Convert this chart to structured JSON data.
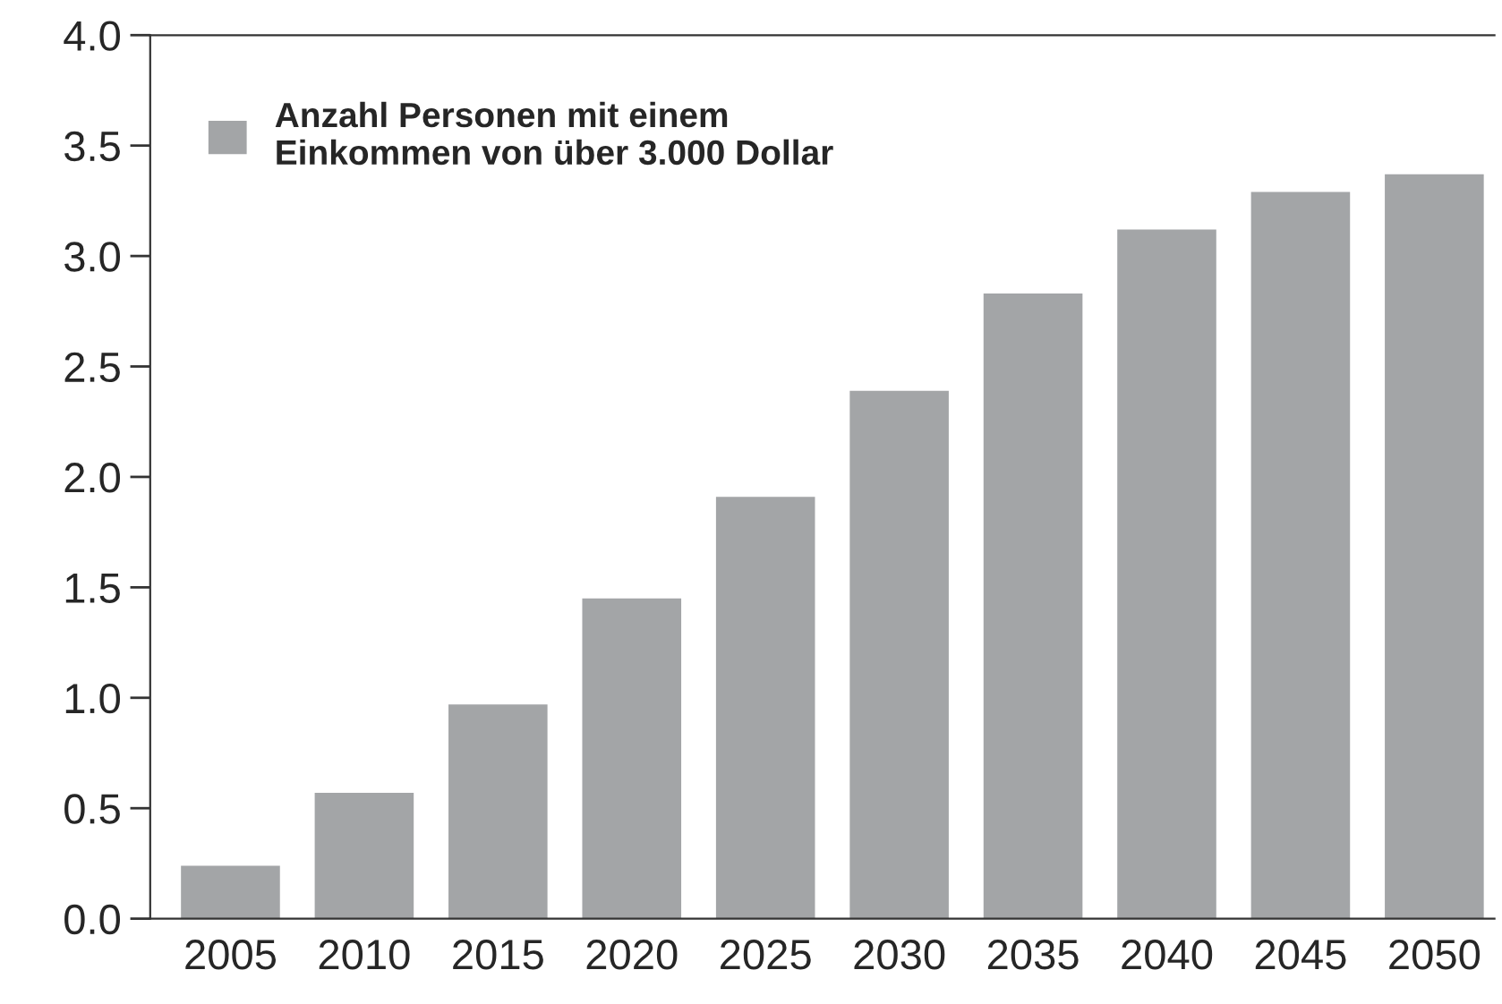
{
  "chart_data": {
    "type": "bar",
    "categories": [
      "2005",
      "2010",
      "2015",
      "2020",
      "2025",
      "2030",
      "2035",
      "2040",
      "2045",
      "2050"
    ],
    "series": [
      {
        "name": "Anzahl Personen mit einem\nEinkommen von über 3.000 Dollar",
        "color": "#a3a5a7",
        "values": [
          0.24,
          0.57,
          0.97,
          1.45,
          1.91,
          2.39,
          2.83,
          3.12,
          3.29,
          3.37
        ]
      }
    ],
    "ylim": [
      0,
      4
    ],
    "yticks": [
      {
        "value": 0,
        "label": "0.0"
      },
      {
        "value": 0.5,
        "label": "0.5"
      },
      {
        "value": 1,
        "label": "1.0"
      },
      {
        "value": 1.5,
        "label": "1.5"
      },
      {
        "value": 2,
        "label": "2.0"
      },
      {
        "value": 2.5,
        "label": "2.5"
      },
      {
        "value": 3,
        "label": "3.0"
      },
      {
        "value": 3.5,
        "label": "3.5"
      },
      {
        "value": 4,
        "label": "4.0"
      }
    ],
    "grid": false,
    "legend": "top left"
  }
}
